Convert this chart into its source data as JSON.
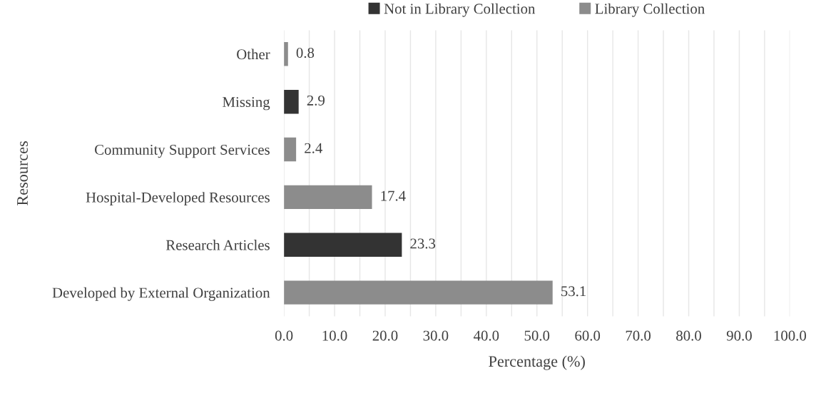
{
  "chart_data": {
    "type": "bar",
    "orientation": "horizontal",
    "xlabel": "Percentage (%)",
    "ylabel": "Resources",
    "categories": [
      "Other",
      "Missing",
      "Community Support Services",
      "Hospital-Developed Resources",
      "Research Articles",
      "Developed by External Organization"
    ],
    "series": [
      {
        "name": "Not in Library Collection",
        "color": "#333333",
        "values": [
          null,
          2.9,
          null,
          null,
          23.3,
          null
        ]
      },
      {
        "name": "Library Collection",
        "color": "#8c8c8c",
        "values": [
          0.8,
          null,
          2.4,
          17.4,
          null,
          53.1
        ]
      }
    ],
    "xlim": [
      0,
      100
    ],
    "xticks": [
      {
        "value": 0,
        "label": "0.0"
      },
      {
        "value": 5,
        "label": null
      },
      {
        "value": 10,
        "label": "10.0"
      },
      {
        "value": 15,
        "label": null
      },
      {
        "value": 20,
        "label": "20.0"
      },
      {
        "value": 25,
        "label": null
      },
      {
        "value": 30,
        "label": "30.0"
      },
      {
        "value": 35,
        "label": null
      },
      {
        "value": 40,
        "label": "40.0"
      },
      {
        "value": 45,
        "label": null
      },
      {
        "value": 50,
        "label": "50.0"
      },
      {
        "value": 55,
        "label": null
      },
      {
        "value": 60,
        "label": "60.0"
      },
      {
        "value": 65,
        "label": null
      },
      {
        "value": 70,
        "label": "70.0"
      },
      {
        "value": 75,
        "label": null
      },
      {
        "value": 80,
        "label": "80.0"
      },
      {
        "value": 85,
        "label": null
      },
      {
        "value": 90,
        "label": "90.0"
      },
      {
        "value": 95,
        "label": null
      },
      {
        "value": 100,
        "label": "100.0"
      }
    ],
    "grid": "x",
    "legend": "top",
    "data_labels": true
  }
}
